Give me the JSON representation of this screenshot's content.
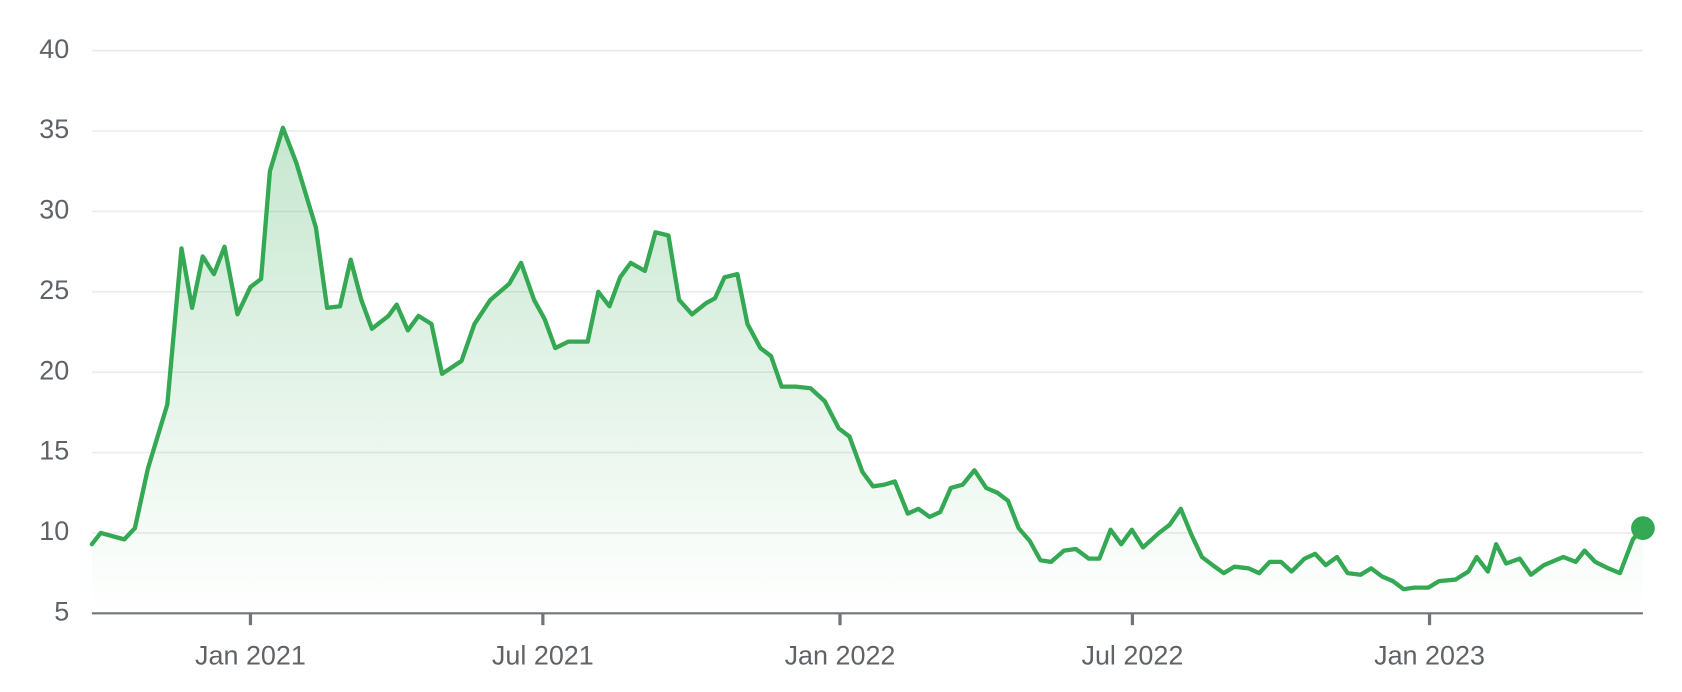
{
  "chart_data": {
    "type": "line",
    "x": [
      2020.731,
      2020.746,
      2020.786,
      2020.804,
      2020.826,
      2020.859,
      2020.883,
      2020.901,
      2020.919,
      2020.938,
      2020.956,
      2020.978,
      2021.0,
      2021.018,
      2021.033,
      2021.055,
      2021.078,
      2021.111,
      2021.13,
      2021.152,
      2021.17,
      2021.188,
      2021.206,
      2021.234,
      2021.248,
      2021.267,
      2021.285,
      2021.307,
      2021.325,
      2021.358,
      2021.38,
      2021.407,
      2021.439,
      2021.459,
      2021.481,
      2021.499,
      2021.517,
      2021.539,
      2021.572,
      2021.59,
      2021.609,
      2021.627,
      2021.645,
      2021.669,
      2021.687,
      2021.709,
      2021.727,
      2021.749,
      2021.773,
      2021.788,
      2021.804,
      2021.826,
      2021.843,
      2021.865,
      2021.883,
      2021.901,
      2021.925,
      2021.95,
      2021.974,
      2021.998,
      2022.016,
      2022.038,
      2022.056,
      2022.075,
      2022.093,
      2022.115,
      2022.133,
      2022.152,
      2022.17,
      2022.188,
      2022.208,
      2022.228,
      2022.248,
      2022.267,
      2022.285,
      2022.303,
      2022.322,
      2022.34,
      2022.358,
      2022.38,
      2022.4,
      2022.422,
      2022.44,
      2022.459,
      2022.477,
      2022.495,
      2022.514,
      2022.541,
      2022.559,
      2022.578,
      2022.596,
      2022.614,
      2022.632,
      2022.651,
      2022.669,
      2022.693,
      2022.711,
      2022.729,
      2022.748,
      2022.766,
      2022.788,
      2022.806,
      2022.824,
      2022.843,
      2022.861,
      2022.883,
      2022.901,
      2022.919,
      2022.938,
      2022.956,
      2022.974,
      2022.998,
      2023.016,
      2023.044,
      2023.066,
      2023.08,
      2023.099,
      2023.113,
      2023.13,
      2023.153,
      2023.172,
      2023.194,
      2023.227,
      2023.248,
      2023.263,
      2023.281,
      2023.303,
      2023.323,
      2023.345,
      2023.362
    ],
    "series": [
      {
        "color": "#34a853",
        "values": [
          9.3,
          10.0,
          9.6,
          10.3,
          14.0,
          18.0,
          27.7,
          24.0,
          27.2,
          26.1,
          27.8,
          23.6,
          25.3,
          25.8,
          32.5,
          35.2,
          33.0,
          29.0,
          24.0,
          24.1,
          27.0,
          24.5,
          22.7,
          23.5,
          24.2,
          22.6,
          23.5,
          23.0,
          19.9,
          20.7,
          23.0,
          24.5,
          25.5,
          26.8,
          24.5,
          23.3,
          21.5,
          21.9,
          21.9,
          25.0,
          24.1,
          25.9,
          26.8,
          26.3,
          28.7,
          28.5,
          24.5,
          23.6,
          24.3,
          24.6,
          25.9,
          26.1,
          23.0,
          21.5,
          21.0,
          19.1,
          19.1,
          19.0,
          18.2,
          16.5,
          16.0,
          13.8,
          12.9,
          13.0,
          13.2,
          11.2,
          11.5,
          11.0,
          11.3,
          12.8,
          13.0,
          13.9,
          12.8,
          12.5,
          12.0,
          10.3,
          9.5,
          8.3,
          8.2,
          8.9,
          9.0,
          8.4,
          8.4,
          10.2,
          9.3,
          10.2,
          9.1,
          10.0,
          10.5,
          11.5,
          9.9,
          8.5,
          8.0,
          7.5,
          7.9,
          7.8,
          7.5,
          8.2,
          8.2,
          7.6,
          8.4,
          8.7,
          8.0,
          8.5,
          7.5,
          7.4,
          7.8,
          7.3,
          7.0,
          6.5,
          6.6,
          6.6,
          7.0,
          7.1,
          7.6,
          8.5,
          7.6,
          9.3,
          8.1,
          8.4,
          7.4,
          8.0,
          8.5,
          8.2,
          8.9,
          8.2,
          7.8,
          7.5,
          9.6,
          10.3
        ]
      }
    ],
    "xlim": [
      2020.731,
      2023.362
    ],
    "xticks": [
      {
        "value": 2021.0,
        "label": "Jan 2021"
      },
      {
        "value": 2021.496,
        "label": "Jul 2021"
      },
      {
        "value": 2022.0,
        "label": "Jan 2022"
      },
      {
        "value": 2022.496,
        "label": "Jul 2022"
      },
      {
        "value": 2023.0,
        "label": "Jan 2023"
      }
    ],
    "ylim": [
      5,
      40
    ],
    "yticks": [
      5,
      10,
      15,
      20,
      25,
      30,
      35,
      40
    ],
    "grid": true
  }
}
